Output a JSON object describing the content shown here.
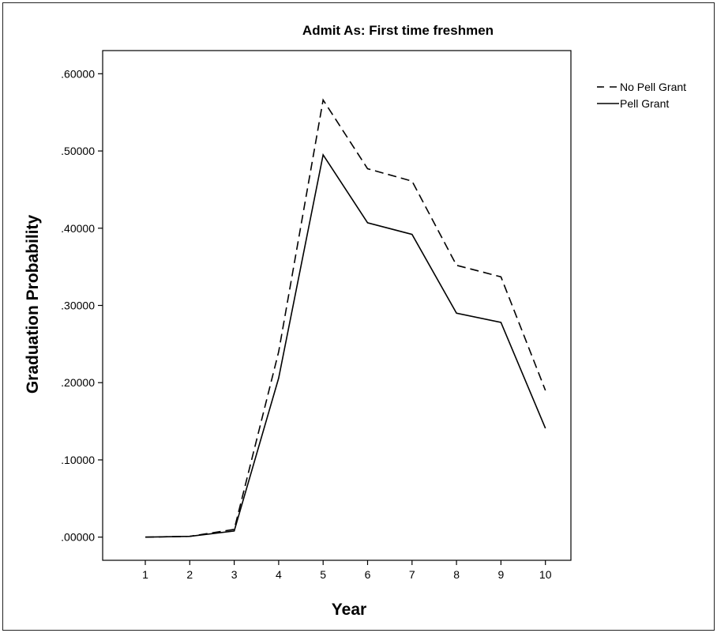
{
  "chart_data": {
    "type": "line",
    "title": "Admit As: First time freshmen",
    "xlabel": "Year",
    "ylabel": "Graduation Probability",
    "categories": [
      "1",
      "2",
      "3",
      "4",
      "5",
      "6",
      "7",
      "8",
      "9",
      "10"
    ],
    "ylim": [
      -0.03,
      0.63
    ],
    "yticks": [
      {
        "value": 0.0,
        "label": ".00000"
      },
      {
        "value": 0.1,
        "label": ".10000"
      },
      {
        "value": 0.2,
        "label": ".20000"
      },
      {
        "value": 0.3,
        "label": ".30000"
      },
      {
        "value": 0.4,
        "label": ".40000"
      },
      {
        "value": 0.5,
        "label": ".50000"
      },
      {
        "value": 0.6,
        "label": ".60000"
      }
    ],
    "grid": false,
    "legend_position": "top-right, outside plot",
    "series": [
      {
        "name": "No Pell Grant",
        "style": "dashed",
        "color": "#000000",
        "values": [
          0.0,
          0.001,
          0.01,
          0.24,
          0.566,
          0.477,
          0.461,
          0.352,
          0.337,
          0.19
        ]
      },
      {
        "name": "Pell Grant",
        "style": "solid",
        "color": "#000000",
        "values": [
          0.0,
          0.001,
          0.008,
          0.206,
          0.495,
          0.407,
          0.392,
          0.29,
          0.278,
          0.141
        ]
      }
    ]
  }
}
